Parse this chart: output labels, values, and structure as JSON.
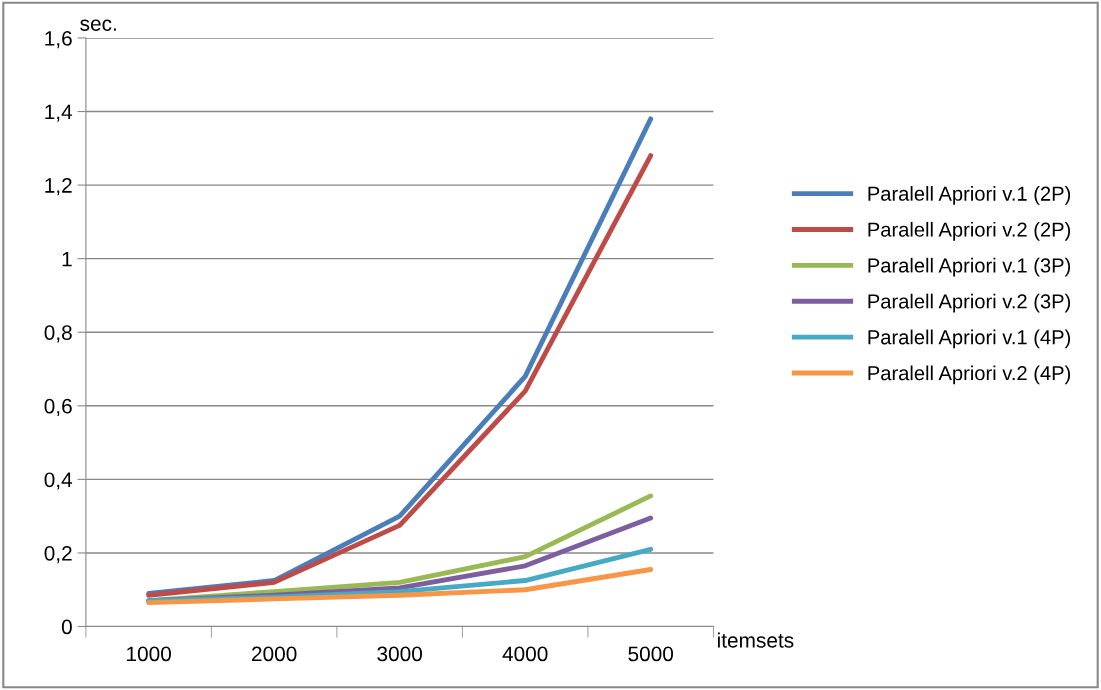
{
  "chart_data": {
    "type": "line",
    "xlabel": "itemsets",
    "ylabel": "sec.",
    "categories": [
      "1000",
      "2000",
      "3000",
      "4000",
      "5000"
    ],
    "ylim": [
      0,
      1.6
    ],
    "yticks": [
      0,
      {
        "value": 0.2,
        "label": "0,2"
      },
      {
        "value": 0.4,
        "label": "0,4"
      },
      {
        "value": 0.6,
        "label": "0,6"
      },
      {
        "value": 0.8,
        "label": "0,8"
      },
      1,
      {
        "value": 1.2,
        "label": "1,2"
      },
      {
        "value": 1.4,
        "label": "1,4"
      },
      {
        "value": 1.6,
        "label": "1,6"
      }
    ],
    "grid": "y",
    "legend": "right",
    "marker": "none",
    "line_style": "solid",
    "series": [
      {
        "name": "Paralell Apriori v.1 (2P)",
        "color": "#4a7ebb",
        "values": [
          0.09,
          0.125,
          0.3,
          0.68,
          1.38
        ]
      },
      {
        "name": "Paralell Apriori v.2 (2P)",
        "color": "#be4b48",
        "values": [
          0.085,
          0.12,
          0.275,
          0.64,
          1.28
        ]
      },
      {
        "name": "Paralell Apriori v.1 (3P)",
        "color": "#98b954",
        "values": [
          0.07,
          0.095,
          0.12,
          0.19,
          0.355
        ]
      },
      {
        "name": "Paralell Apriori v.2 (3P)",
        "color": "#7d5fa0",
        "values": [
          0.07,
          0.085,
          0.105,
          0.165,
          0.295
        ]
      },
      {
        "name": "Paralell Apriori v.1 (4P)",
        "color": "#46aac5",
        "values": [
          0.07,
          0.08,
          0.095,
          0.125,
          0.21
        ]
      },
      {
        "name": "Paralell Apriori v.2 (4P)",
        "color": "#f79646",
        "values": [
          0.065,
          0.075,
          0.085,
          0.1,
          0.155
        ]
      }
    ]
  }
}
